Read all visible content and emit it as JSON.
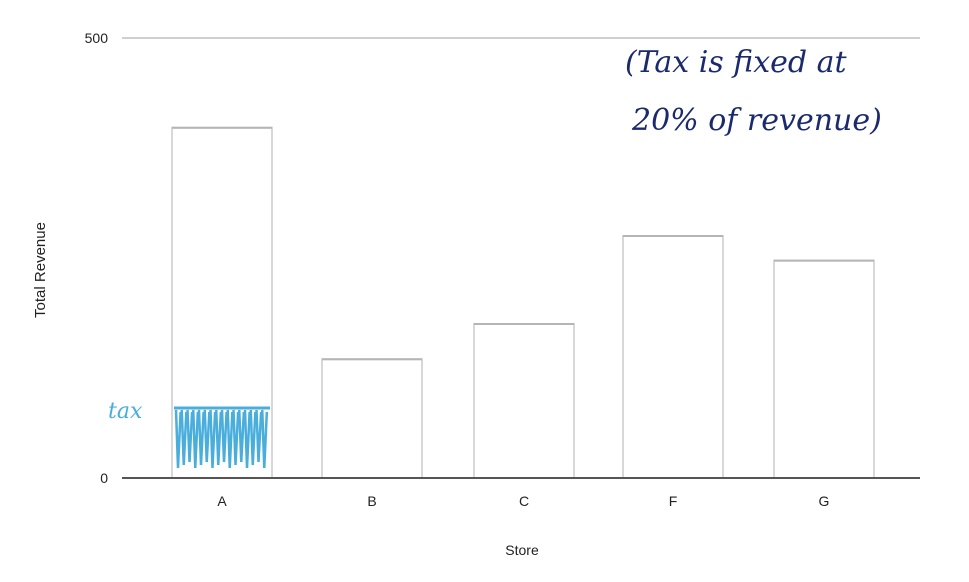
{
  "chart_data": {
    "type": "bar",
    "title": "",
    "xlabel": "Store",
    "ylabel": "Total Revenue",
    "categories": [
      "A",
      "B",
      "C",
      "F",
      "G"
    ],
    "values": [
      398,
      135,
      175,
      275,
      247
    ],
    "ylim": [
      0,
      500
    ],
    "yticks": [
      "0",
      "500"
    ],
    "grid": false,
    "bar_fill": "#ffffff",
    "bar_stroke": "#d8d8d8",
    "axis_color": "#555555"
  },
  "annotations": {
    "note": [
      "(Tax is fixed at",
      "20% of revenue)"
    ],
    "tax_label": "tax",
    "tax_fraction": 0.2,
    "tax_store": "A",
    "note_color": "#1a2a6c",
    "tax_color": "#4aaedc"
  }
}
